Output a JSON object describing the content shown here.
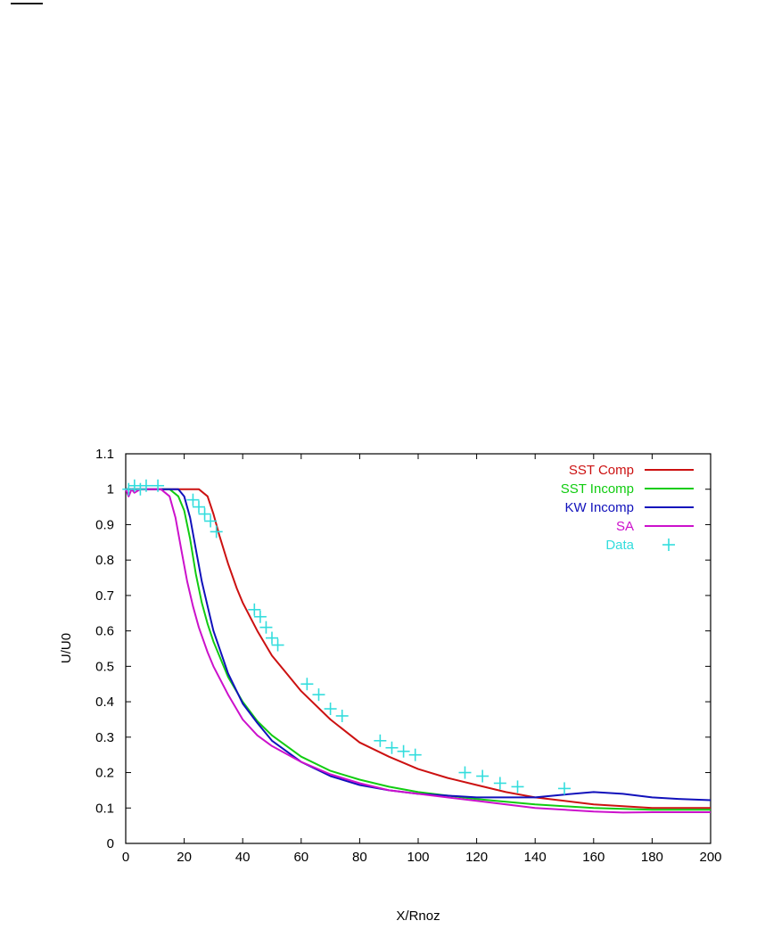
{
  "chart_data": {
    "type": "line",
    "title": "",
    "xlabel": "X/Rnoz",
    "ylabel": "U/U0",
    "xlim": [
      0,
      200
    ],
    "ylim": [
      0,
      1.1
    ],
    "xticks": [
      0,
      20,
      40,
      60,
      80,
      100,
      120,
      140,
      160,
      180,
      200
    ],
    "yticks": [
      0,
      0.1,
      0.2,
      0.3,
      0.4,
      0.5,
      0.6,
      0.7,
      0.8,
      0.9,
      1,
      1.1
    ],
    "xtick_labels": [
      "0",
      "20",
      "40",
      "60",
      "80",
      "100",
      "120",
      "140",
      "160",
      "180",
      "200"
    ],
    "ytick_labels": [
      "0",
      "0.1",
      "0.2",
      "0.3",
      "0.4",
      "0.5",
      "0.6",
      "0.7",
      "0.8",
      "0.9",
      "1",
      "1.1"
    ],
    "grid": false,
    "legend_position": "top-right",
    "series": [
      {
        "name": "SST Comp",
        "color": "#cc1111",
        "kind": "line",
        "x": [
          0,
          5,
          10,
          15,
          20,
          25,
          28,
          30,
          32,
          35,
          38,
          40,
          45,
          50,
          55,
          60,
          70,
          80,
          90,
          100,
          110,
          120,
          130,
          140,
          150,
          160,
          170,
          180,
          190,
          200
        ],
        "y": [
          1.0,
          1.0,
          1.0,
          1.0,
          1.0,
          1.0,
          0.98,
          0.93,
          0.87,
          0.79,
          0.72,
          0.68,
          0.6,
          0.53,
          0.48,
          0.43,
          0.35,
          0.285,
          0.245,
          0.21,
          0.185,
          0.165,
          0.145,
          0.13,
          0.12,
          0.11,
          0.105,
          0.1,
          0.1,
          0.1
        ]
      },
      {
        "name": "SST Incomp",
        "color": "#11cc11",
        "kind": "line",
        "x": [
          0,
          5,
          10,
          15,
          18,
          20,
          22,
          24,
          26,
          28,
          30,
          35,
          40,
          45,
          50,
          60,
          70,
          80,
          90,
          100,
          120,
          140,
          160,
          180,
          200
        ],
        "y": [
          1.0,
          1.0,
          1.0,
          1.0,
          0.98,
          0.94,
          0.86,
          0.76,
          0.68,
          0.62,
          0.57,
          0.47,
          0.4,
          0.345,
          0.305,
          0.245,
          0.205,
          0.18,
          0.16,
          0.145,
          0.125,
          0.11,
          0.1,
          0.095,
          0.095
        ]
      },
      {
        "name": "KW Incomp",
        "color": "#1111bb",
        "kind": "line",
        "x": [
          0,
          5,
          10,
          15,
          18,
          20,
          22,
          24,
          26,
          28,
          30,
          35,
          40,
          45,
          50,
          60,
          70,
          80,
          90,
          100,
          110,
          120,
          130,
          140,
          150,
          160,
          170,
          180,
          190,
          200
        ],
        "y": [
          1.0,
          1.0,
          1.0,
          1.0,
          1.0,
          0.98,
          0.92,
          0.83,
          0.74,
          0.67,
          0.6,
          0.48,
          0.395,
          0.34,
          0.29,
          0.23,
          0.19,
          0.165,
          0.15,
          0.14,
          0.135,
          0.13,
          0.13,
          0.13,
          0.138,
          0.145,
          0.14,
          0.13,
          0.125,
          0.122
        ]
      },
      {
        "name": "SA",
        "color": "#cc11cc",
        "kind": "line",
        "x": [
          0,
          1,
          2,
          3,
          5,
          8,
          10,
          12,
          15,
          17,
          19,
          21,
          23,
          25,
          28,
          30,
          35,
          40,
          45,
          50,
          60,
          70,
          80,
          90,
          100,
          120,
          140,
          160,
          170,
          180,
          200
        ],
        "y": [
          1.0,
          0.98,
          1.0,
          0.99,
          1.0,
          1.0,
          1.0,
          1.0,
          0.98,
          0.92,
          0.83,
          0.74,
          0.67,
          0.61,
          0.54,
          0.5,
          0.42,
          0.35,
          0.305,
          0.275,
          0.23,
          0.195,
          0.17,
          0.15,
          0.14,
          0.12,
          0.1,
          0.09,
          0.087,
          0.088,
          0.088
        ]
      },
      {
        "name": "Data",
        "color": "#33dddd",
        "kind": "marker",
        "marker": "plus",
        "x": [
          1,
          3,
          5,
          7,
          11,
          23,
          25,
          27,
          29,
          31,
          44,
          46,
          48,
          50,
          52,
          62,
          66,
          70,
          74,
          87,
          91,
          95,
          99,
          116,
          122,
          128,
          134,
          150
        ],
        "y": [
          1.0,
          1.01,
          1.0,
          1.01,
          1.01,
          0.97,
          0.95,
          0.93,
          0.91,
          0.88,
          0.66,
          0.64,
          0.61,
          0.58,
          0.56,
          0.45,
          0.42,
          0.38,
          0.36,
          0.29,
          0.27,
          0.26,
          0.25,
          0.2,
          0.19,
          0.17,
          0.16,
          0.155
        ]
      }
    ]
  }
}
